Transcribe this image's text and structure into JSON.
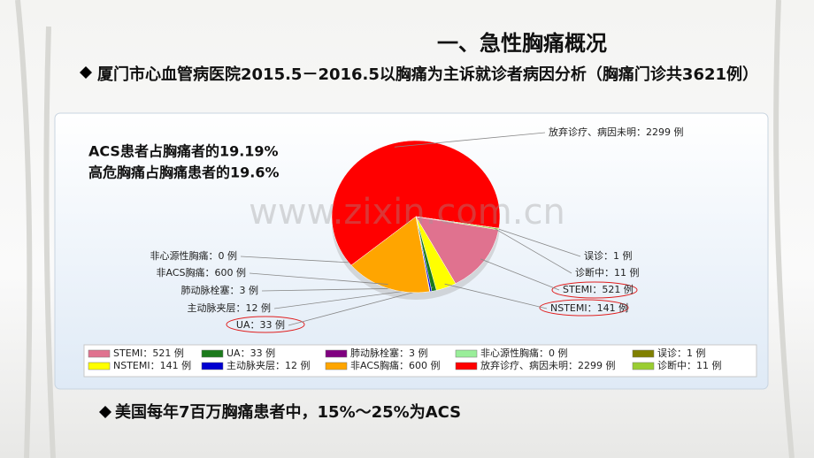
{
  "header": {
    "title": "一、急性胸痛概况",
    "bullet": "厦门市心血管病医院2015.5－2016.5以胸痛为主诉就诊者病因分析（胸痛门诊共3621例）"
  },
  "chart_data": {
    "type": "pie",
    "annotations": [
      "ACS患者占胸痛者的19.19%",
      "高危胸痛占胸痛患者的19.6%"
    ],
    "watermark": "www.zixin.com.cn",
    "separator": "：",
    "categories": [
      "STEMI",
      "NSTEMI",
      "UA",
      "主动脉夹层",
      "肺动脉栓塞",
      "非ACS胸痛",
      "非心源性胸痛",
      "放弃诊疗、病因未明",
      "误诊",
      "诊断中"
    ],
    "values": [
      521,
      141,
      33,
      12,
      3,
      600,
      0,
      2299,
      1,
      11
    ],
    "value_labels": [
      "521 例",
      "141 例",
      "33 例",
      "12 例",
      "3 例",
      "600 例",
      "0 例",
      "2299 例",
      "1 例",
      "11 例"
    ],
    "colors": [
      "#e0728f",
      "#ffff00",
      "#1b7a1b",
      "#0000d0",
      "#800080",
      "#ffa500",
      "#99ee99",
      "#ff0000",
      "#808000",
      "#9acd32"
    ]
  },
  "footer": {
    "bullet": "美国每年7百万胸痛患者中，15%～25%为ACS"
  }
}
